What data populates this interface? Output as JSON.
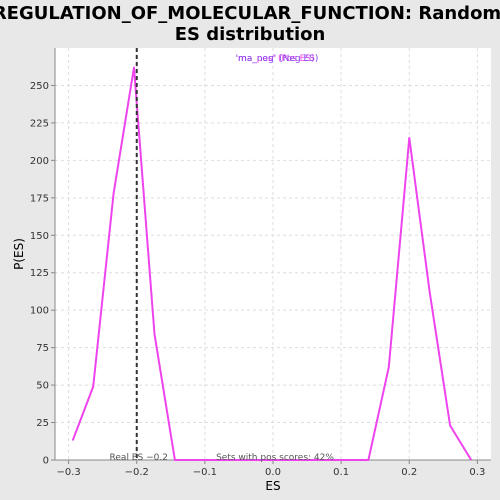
{
  "chart_data": {
    "type": "line",
    "title_line1": "REGULATION_OF_MOLECULAR_FUNCTION: Random",
    "title_line2": "ES distribution",
    "xlabel": "ES",
    "ylabel": "P(ES)",
    "xlim": [
      -0.32,
      0.32
    ],
    "ylim": [
      0,
      275
    ],
    "xticks": [
      -0.3,
      -0.2,
      -0.1,
      0.0,
      0.1,
      0.2,
      0.3
    ],
    "xtick_labels": [
      "−0.3",
      "−0.2",
      "−0.1",
      "0.0",
      "0.1",
      "0.2",
      "0.3"
    ],
    "yticks": [
      0,
      25,
      50,
      75,
      100,
      125,
      150,
      175,
      200,
      225,
      250
    ],
    "grid": true,
    "series": [
      {
        "color": "#ee44ee",
        "x": [
          -0.294,
          -0.264,
          -0.234,
          -0.204,
          -0.174,
          -0.144,
          0.0,
          0.14,
          0.17,
          0.2,
          0.23,
          0.26,
          0.291
        ],
        "y": [
          13,
          49,
          178,
          262,
          84,
          0,
          0,
          0,
          62,
          215,
          112,
          23,
          0
        ]
      }
    ],
    "vline": {
      "x": -0.2,
      "label": "Real ES −0.2"
    },
    "annotation": "Sets with pos scores: 42%",
    "legend": {
      "placement": "top-center",
      "entries": [
        {
          "label": "'ma_pos' (Pos ES)",
          "color": "#ee44ee"
        },
        {
          "label": "'ma_neg' (Neg ES)",
          "color": "#8844ee"
        }
      ]
    }
  }
}
